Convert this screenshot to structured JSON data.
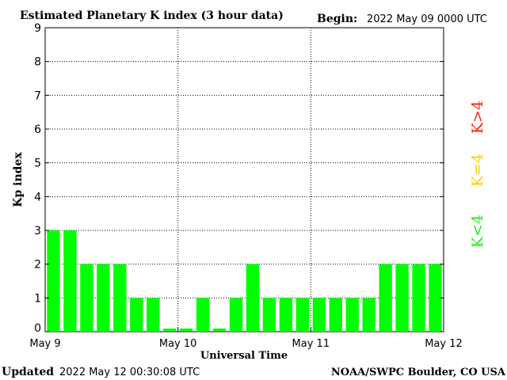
{
  "header": {
    "title": "Estimated Planetary K index (3 hour data)",
    "begin_label": "Begin:",
    "begin_value": "2022 May 09 0000 UTC"
  },
  "footer": {
    "updated_label": "Updated",
    "updated_value": "2022 May 12 00:30:08 UTC",
    "source": "NOAA/SWPC Boulder, CO USA"
  },
  "legend": {
    "high": "K>4",
    "equal": "K=4",
    "low": "K<4",
    "colors": {
      "high": "#ff2200",
      "equal": "#ffcc00",
      "low": "#22ee22"
    }
  },
  "chart_data": {
    "type": "bar",
    "title": "Estimated Planetary K index (3 hour data)",
    "xlabel": "Universal Time",
    "ylabel": "Kp index",
    "ylim": [
      0,
      9
    ],
    "yticks": [
      0,
      1,
      2,
      3,
      4,
      5,
      6,
      7,
      8,
      9
    ],
    "xticks": [
      "May 9",
      "May 10",
      "May 11",
      "May 12"
    ],
    "grid": "dotted, at major ticks",
    "bar_color": "#00ff00",
    "values": [
      3,
      3,
      2,
      2,
      2,
      1,
      1,
      0,
      0,
      1,
      0,
      1,
      2,
      1,
      1,
      1,
      1,
      1,
      1,
      1,
      2,
      2,
      2,
      2
    ]
  }
}
